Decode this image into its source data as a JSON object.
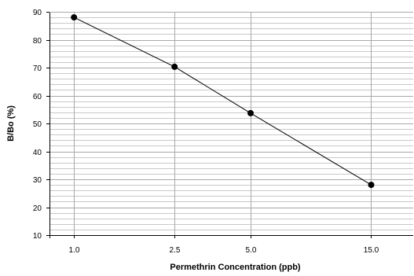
{
  "chart_data": {
    "type": "line",
    "title": "",
    "xlabel": "Permethrin Concentration (ppb)",
    "ylabel": "B/Bo (%)",
    "x_scale": "log",
    "categories": [
      "1.0",
      "2.5",
      "5.0",
      "15.0"
    ],
    "x": [
      1.0,
      2.5,
      5.0,
      15.0
    ],
    "xlim": [
      0.8,
      22
    ],
    "ylim": [
      10,
      90
    ],
    "y_ticks": [
      10,
      20,
      30,
      40,
      50,
      60,
      70,
      80,
      90
    ],
    "y_minor_step": 2,
    "grid": true,
    "legend": "none",
    "series": [
      {
        "values": [
          88,
          70.3,
          53.7,
          28
        ],
        "color": "#000000",
        "marker": "circle"
      }
    ]
  }
}
